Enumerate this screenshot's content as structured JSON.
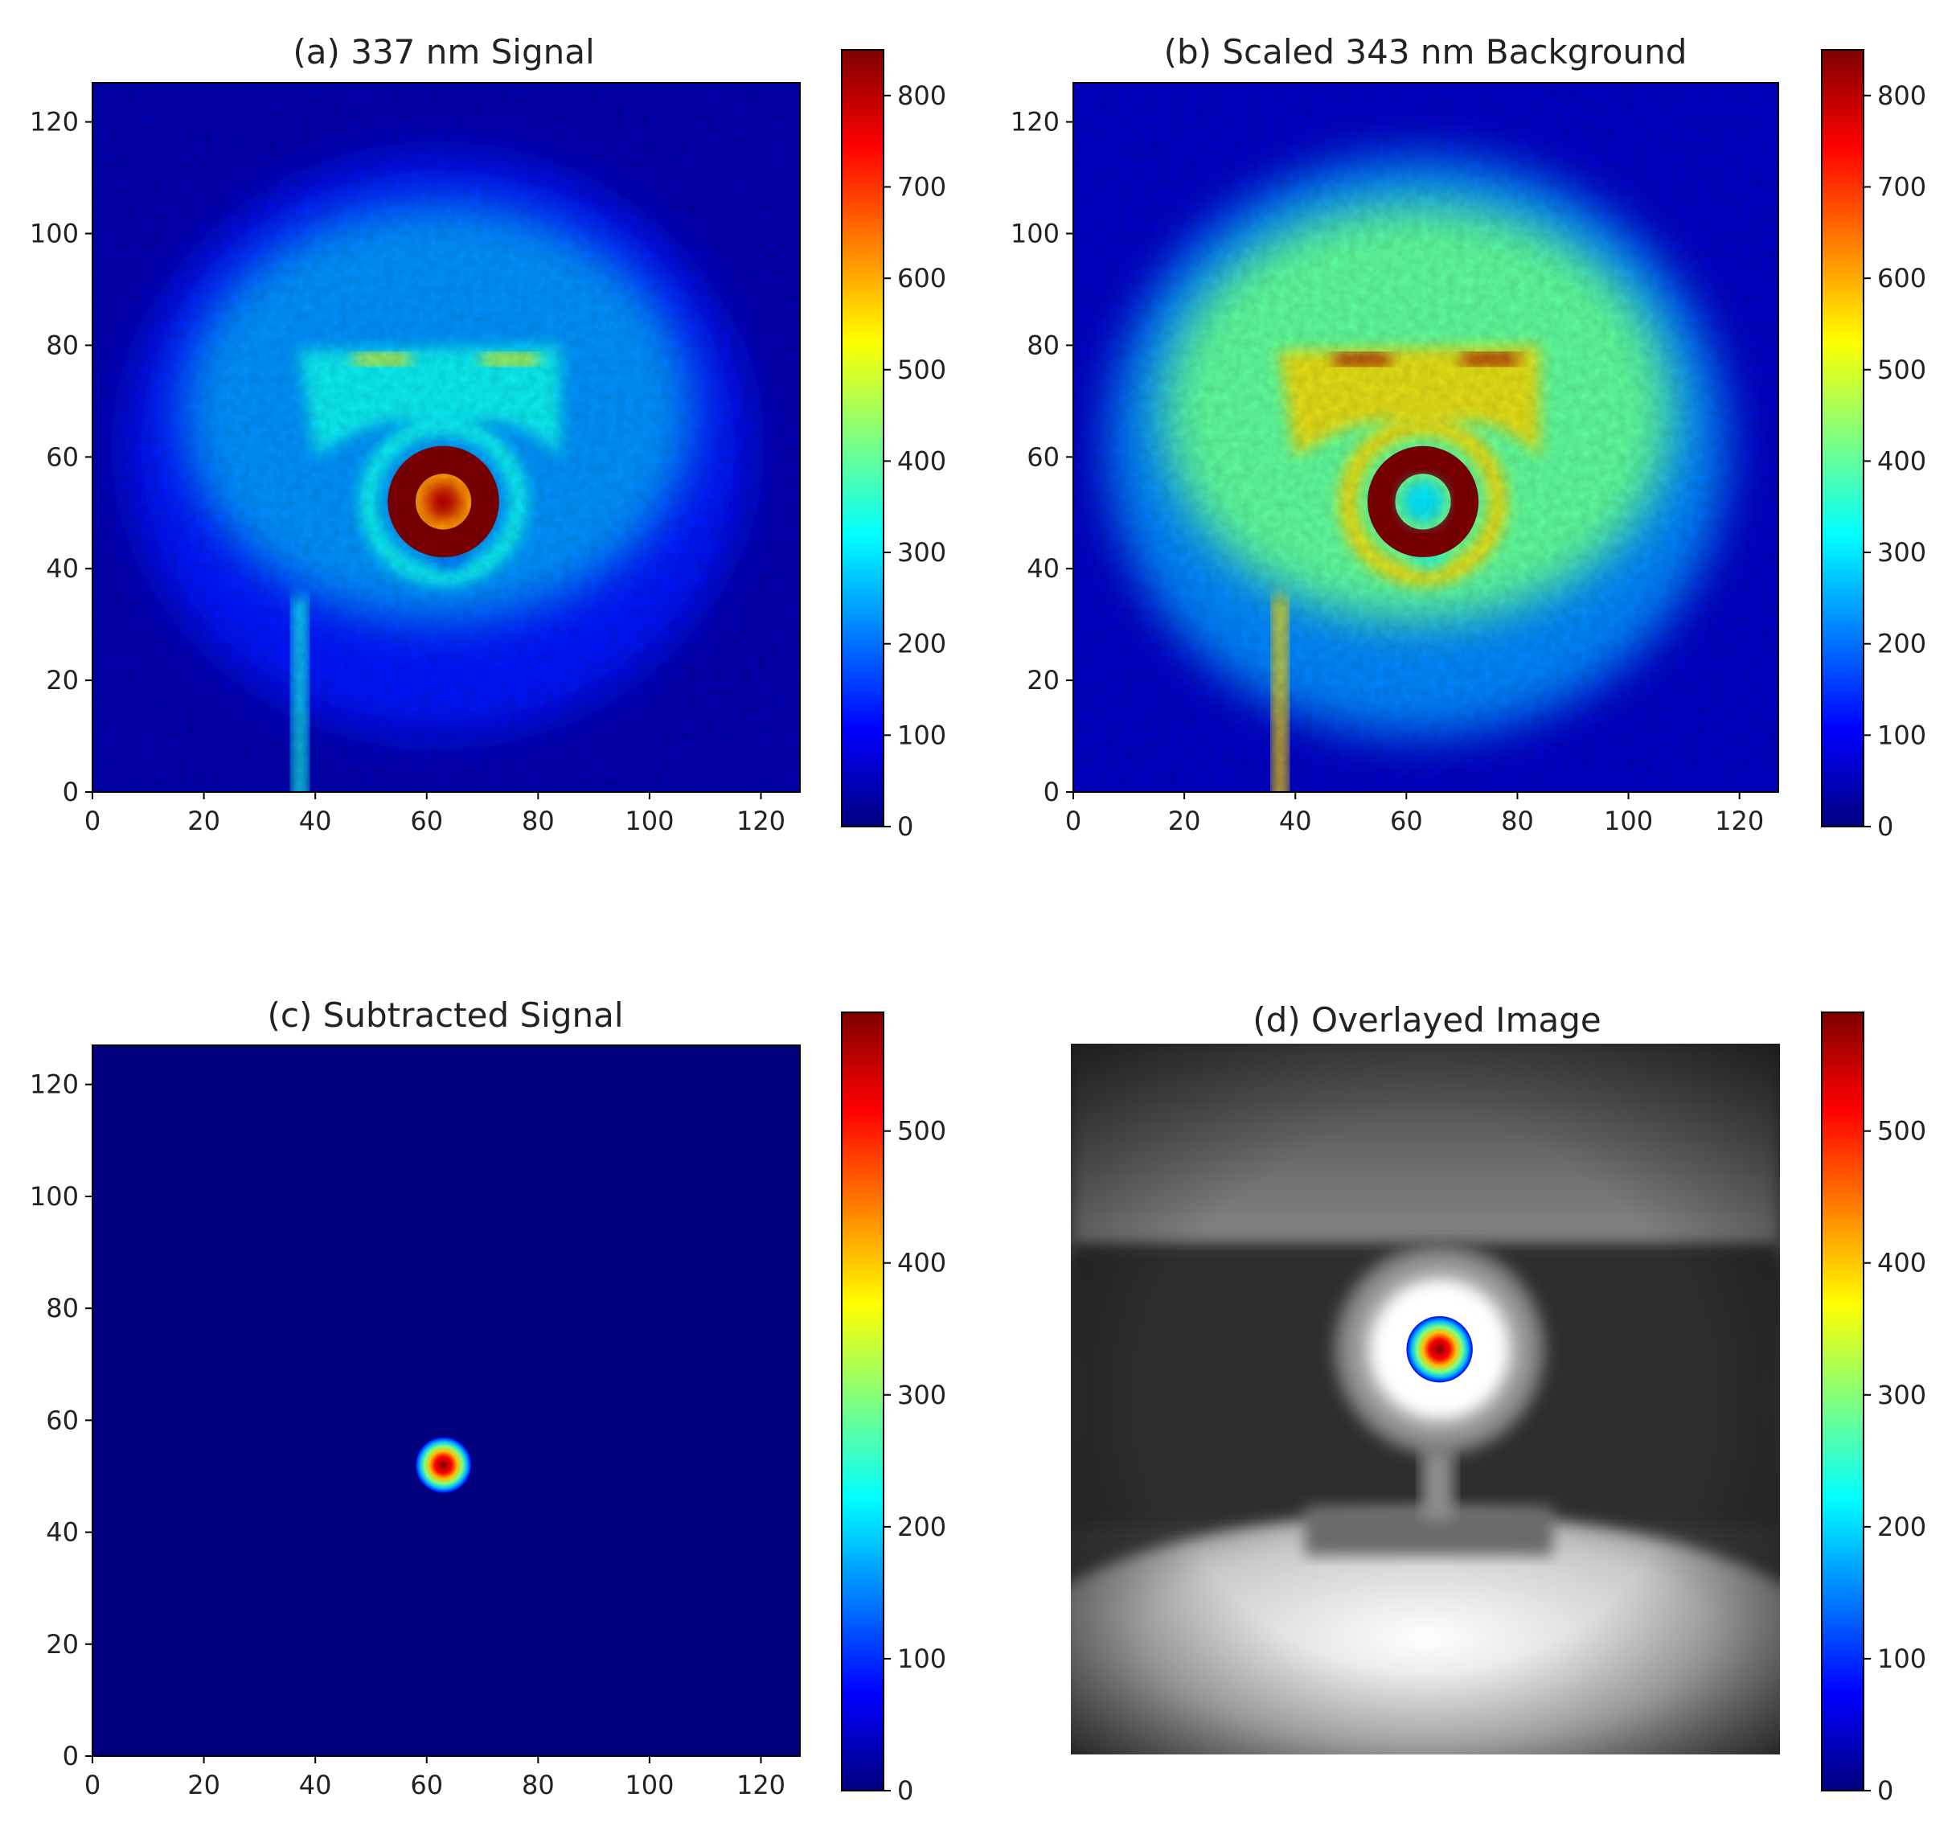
{
  "colormap_stops": [
    "#00007f",
    "#0000ff",
    "#007fff",
    "#00ffff",
    "#7fff7f",
    "#ffff00",
    "#ff7f00",
    "#ff0000",
    "#7f0000"
  ],
  "chart_data": [
    {
      "type": "heatmap",
      "title": "(a) 337 nm Signal",
      "xlabel": "",
      "ylabel": "",
      "xlim": [
        0,
        127
      ],
      "ylim": [
        127,
        0
      ],
      "x_ticks": [
        "0",
        "20",
        "40",
        "60",
        "80",
        "100",
        "120"
      ],
      "y_ticks": [
        "0",
        "20",
        "40",
        "60",
        "80",
        "100",
        "120"
      ],
      "colormap": "jet",
      "colorbar": {
        "range": [
          0,
          850
        ],
        "ticks": [
          "0",
          "100",
          "200",
          "300",
          "400",
          "500",
          "600",
          "700",
          "800"
        ]
      },
      "features": {
        "background_level": 40,
        "halo": {
          "center": [
            62,
            62
          ],
          "radius": [
            56,
            52
          ],
          "level": 230
        },
        "ring": {
          "center": [
            63,
            52
          ],
          "inner_radius": 5,
          "outer_radius": 10,
          "level": 850
        },
        "core": {
          "center": [
            63,
            52
          ],
          "radius": 3,
          "level": 800
        },
        "bracket_level": 330,
        "hot_strips_level": 540
      }
    },
    {
      "type": "heatmap",
      "title": "(b) Scaled 343 nm Background",
      "xlabel": "",
      "ylabel": "",
      "xlim": [
        0,
        127
      ],
      "ylim": [
        127,
        0
      ],
      "x_ticks": [
        "0",
        "20",
        "40",
        "60",
        "80",
        "100",
        "120"
      ],
      "y_ticks": [
        "0",
        "20",
        "40",
        "60",
        "80",
        "100",
        "120"
      ],
      "colormap": "jet",
      "colorbar": {
        "range": [
          0,
          850
        ],
        "ticks": [
          "0",
          "100",
          "200",
          "300",
          "400",
          "500",
          "600",
          "700",
          "800"
        ]
      },
      "features": {
        "background_level": 60,
        "halo": {
          "center": [
            62,
            62
          ],
          "radius": [
            56,
            52
          ],
          "level": 400
        },
        "ring": {
          "center": [
            63,
            52
          ],
          "inner_radius": 5,
          "outer_radius": 10,
          "level": 850
        },
        "core": {
          "center": [
            63,
            52
          ],
          "radius": 4,
          "level": 300
        },
        "bracket_level": 560,
        "hot_strips_level": 820
      }
    },
    {
      "type": "heatmap",
      "title": "(c) Subtracted Signal",
      "xlabel": "",
      "ylabel": "",
      "xlim": [
        0,
        127
      ],
      "ylim": [
        127,
        0
      ],
      "x_ticks": [
        "0",
        "20",
        "40",
        "60",
        "80",
        "100",
        "120"
      ],
      "y_ticks": [
        "0",
        "20",
        "40",
        "60",
        "80",
        "100",
        "120"
      ],
      "colormap": "jet",
      "colorbar": {
        "range": [
          0,
          590
        ],
        "ticks": [
          "0",
          "100",
          "200",
          "300",
          "400",
          "500"
        ]
      },
      "features": {
        "background_level": 0,
        "spot": {
          "center": [
            63,
            52
          ],
          "radius": 5,
          "peak": 590
        }
      }
    },
    {
      "type": "heatmap",
      "title": "(d) Overlayed Image",
      "xlabel": "",
      "ylabel": "",
      "colormap": "jet",
      "colorbar": {
        "range": [
          0,
          590
        ],
        "ticks": [
          "0",
          "100",
          "200",
          "300",
          "400",
          "500"
        ]
      },
      "features": {
        "underlay": "grayscale",
        "spot": {
          "center": [
            0.52,
            0.43
          ],
          "radius": 0.085,
          "peak": 590
        }
      }
    }
  ]
}
